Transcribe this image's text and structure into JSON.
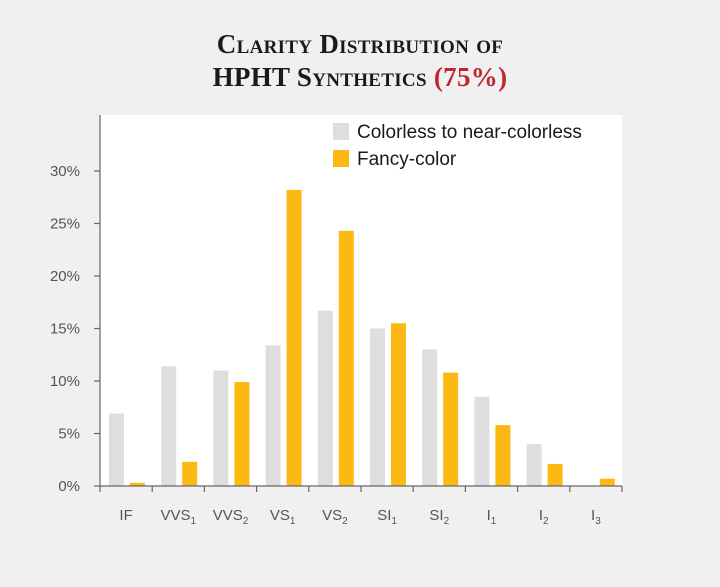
{
  "title": {
    "line1": "Clarity Distribution of",
    "line2": "HPHT Synthetics",
    "highlight": "(75%)"
  },
  "colors": {
    "background": "#f0f0f1",
    "plot_background": "#ffffff",
    "axis": "#666666",
    "series_colorless": "#dededf",
    "series_fancy": "#fdb913",
    "title_highlight": "#c0272d"
  },
  "chart_data": {
    "type": "bar",
    "categories": [
      {
        "base": "IF",
        "sub": ""
      },
      {
        "base": "VVS",
        "sub": "1"
      },
      {
        "base": "VVS",
        "sub": "2"
      },
      {
        "base": "VS",
        "sub": "1"
      },
      {
        "base": "VS",
        "sub": "2"
      },
      {
        "base": "SI",
        "sub": "1"
      },
      {
        "base": "SI",
        "sub": "2"
      },
      {
        "base": "I",
        "sub": "1"
      },
      {
        "base": "I",
        "sub": "2"
      },
      {
        "base": "I",
        "sub": "3"
      }
    ],
    "series": [
      {
        "name": "Colorless to near-colorless",
        "color": "#dededf",
        "values": [
          6.9,
          11.4,
          11.0,
          13.4,
          16.7,
          15.0,
          13.0,
          8.5,
          4.0,
          0.0
        ]
      },
      {
        "name": "Fancy-color",
        "color": "#fdb913",
        "values": [
          0.3,
          2.3,
          9.9,
          28.2,
          24.3,
          15.5,
          10.8,
          5.8,
          2.1,
          0.7
        ]
      }
    ],
    "yticks": [
      "0%",
      "5%",
      "10%",
      "15%",
      "20%",
      "25%",
      "30%"
    ],
    "ylim": [
      0,
      35
    ],
    "legend_position": "top-right",
    "grid": false
  }
}
